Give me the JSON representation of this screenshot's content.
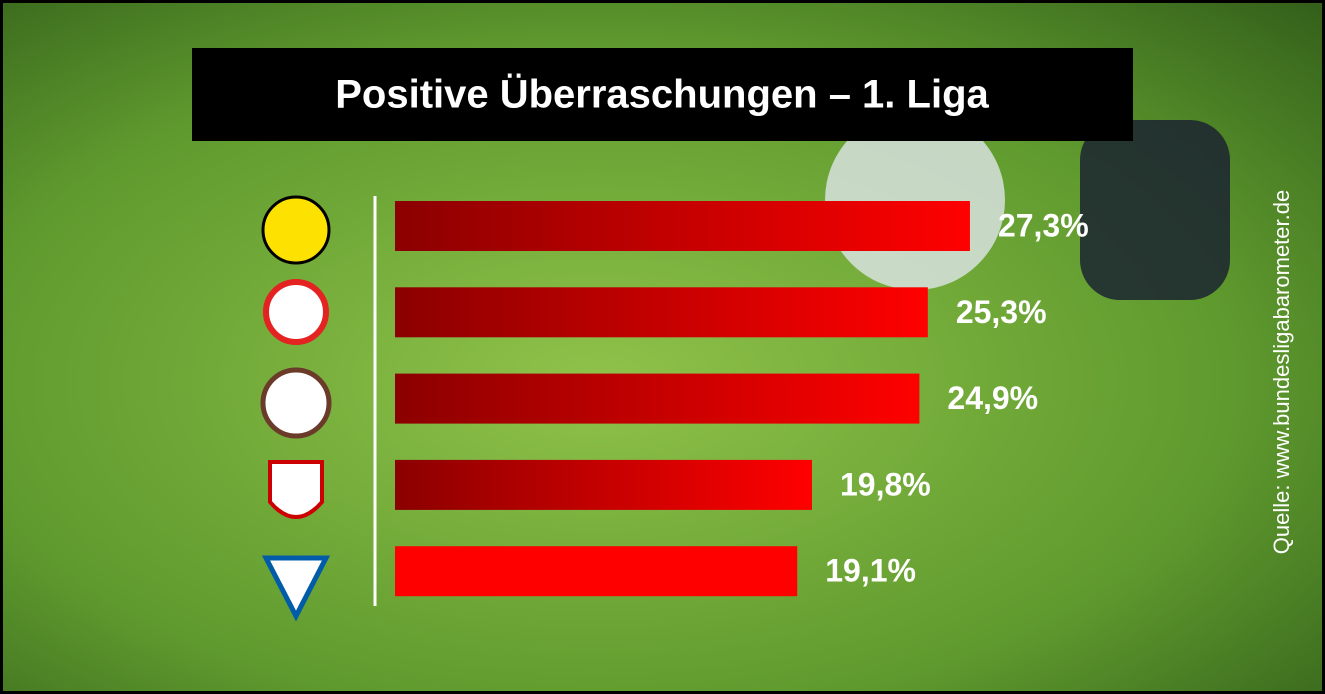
{
  "chart_data": {
    "type": "bar",
    "orientation": "horizontal",
    "title": "Positive Überraschungen – 1. Liga",
    "categories": [
      null,
      null,
      null,
      null,
      null
    ],
    "values": [
      27.3,
      25.3,
      24.9,
      19.8,
      19.1
    ],
    "value_labels": [
      "27,3%",
      "25,3%",
      "24,9%",
      "19,8%",
      "19,1%"
    ],
    "color": "#ff0000",
    "source": "Quelle: www.bundesligabarometer.de"
  }
}
